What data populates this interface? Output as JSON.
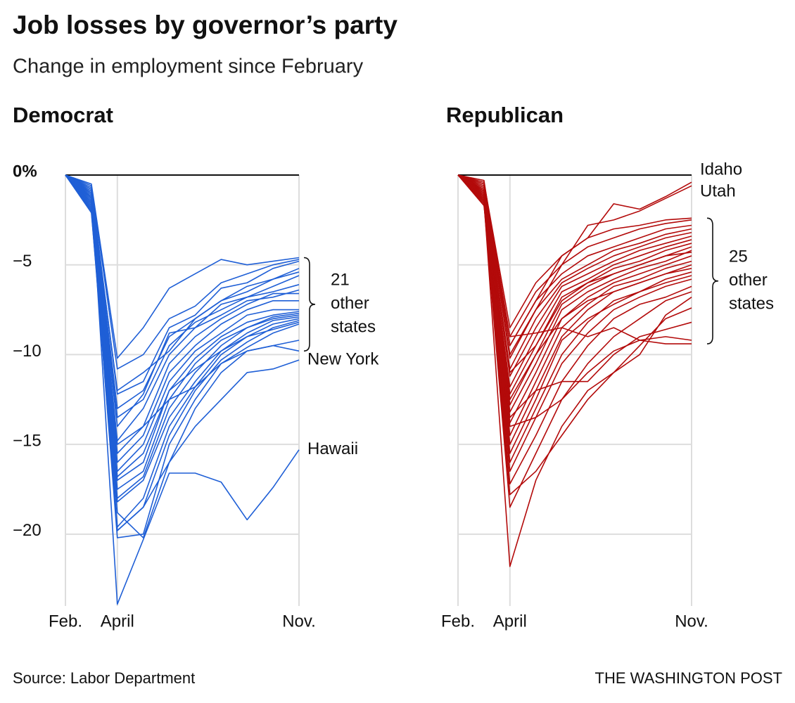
{
  "header": {
    "title": "Job losses by governor’s party",
    "subtitle": "Change in employment since February"
  },
  "footer": {
    "source": "Source: Labor Department",
    "credit": "THE WASHINGTON POST"
  },
  "chart_data": [
    {
      "type": "line",
      "title": "Democrat",
      "color": "#1f5fd6",
      "categories": [
        "Feb.",
        null,
        "April",
        null,
        null,
        null,
        null,
        null,
        null,
        "Nov."
      ],
      "ylim": [
        -24,
        0
      ],
      "yticks": [
        {
          "value": 0,
          "label": "0%"
        },
        {
          "value": -5,
          "label": "−5"
        },
        {
          "value": -10,
          "label": "−10"
        },
        {
          "value": -15,
          "label": "−15"
        },
        {
          "value": -20,
          "label": "−20"
        }
      ],
      "annotation": [
        "21",
        "other",
        "states"
      ],
      "series": [
        {
          "name": "New York",
          "values": [
            0,
            -1,
            -19.8,
            -18.5,
            -16,
            -14,
            -12.5,
            -11,
            -10.8,
            -10.3
          ]
        },
        {
          "name": "Hawaii",
          "values": [
            0,
            -0.8,
            -23.9,
            -20.3,
            -16.6,
            -16.6,
            -17.1,
            -19.2,
            -17.4,
            -15.3
          ]
        },
        {
          "values": [
            0,
            -0.5,
            -10.2,
            -8.5,
            -6.3,
            -5.5,
            -4.7,
            -5.0,
            -4.8,
            -4.6
          ]
        },
        {
          "values": [
            0,
            -0.6,
            -10.8,
            -10.0,
            -8.0,
            -7.3,
            -6.0,
            -5.5,
            -5.0,
            -4.7
          ]
        },
        {
          "values": [
            0,
            -0.7,
            -12.2,
            -11.5,
            -8.5,
            -7.8,
            -6.3,
            -6.0,
            -5.2,
            -4.8
          ]
        },
        {
          "values": [
            0,
            -0.8,
            -13.0,
            -12.0,
            -9.0,
            -8.0,
            -7.0,
            -6.5,
            -5.8,
            -5.2
          ]
        },
        {
          "values": [
            0,
            -1.0,
            -13.5,
            -12.5,
            -9.5,
            -8.2,
            -7.5,
            -6.8,
            -6.2,
            -5.6
          ]
        },
        {
          "values": [
            0,
            -1.2,
            -14.0,
            -12.2,
            -8.8,
            -8.5,
            -7.2,
            -6.8,
            -6.5,
            -6.1
          ]
        },
        {
          "values": [
            0,
            -0.9,
            -14.8,
            -13.0,
            -10.0,
            -8.5,
            -7.8,
            -7.0,
            -6.8,
            -6.4
          ]
        },
        {
          "values": [
            0,
            -1.1,
            -15.5,
            -14.0,
            -10.5,
            -9.0,
            -8.0,
            -7.2,
            -6.6,
            -6.6
          ]
        },
        {
          "values": [
            0,
            -1.3,
            -16.0,
            -14.5,
            -11.0,
            -9.5,
            -8.3,
            -7.5,
            -7.0,
            -7.0
          ]
        },
        {
          "values": [
            0,
            -1.5,
            -16.5,
            -15.0,
            -11.5,
            -9.8,
            -8.8,
            -7.8,
            -7.5,
            -7.5
          ]
        },
        {
          "values": [
            0,
            -1.2,
            -17.0,
            -16.0,
            -12.0,
            -10.2,
            -9.0,
            -8.2,
            -7.8,
            -7.6
          ]
        },
        {
          "values": [
            0,
            -1.4,
            -17.5,
            -16.5,
            -12.5,
            -10.5,
            -9.2,
            -8.5,
            -7.9,
            -7.7
          ]
        },
        {
          "values": [
            0,
            -1.6,
            -18.0,
            -16.8,
            -13.0,
            -11.0,
            -9.5,
            -8.5,
            -8.0,
            -7.8
          ]
        },
        {
          "values": [
            0,
            -1.8,
            -18.2,
            -17.0,
            -13.5,
            -11.5,
            -9.8,
            -8.8,
            -8.1,
            -7.9
          ]
        },
        {
          "values": [
            0,
            -1.5,
            -19.6,
            -18.0,
            -14.0,
            -11.8,
            -10.0,
            -9.0,
            -8.3,
            -8.0
          ]
        },
        {
          "values": [
            0,
            -2.0,
            -19.8,
            -18.5,
            -14.5,
            -12.0,
            -10.3,
            -9.3,
            -8.5,
            -8.1
          ]
        },
        {
          "values": [
            0,
            -1.7,
            -20.2,
            -20.0,
            -15.0,
            -12.5,
            -10.5,
            -9.6,
            -8.8,
            -8.3
          ]
        },
        {
          "values": [
            0,
            -1.9,
            -16.8,
            -15.5,
            -12.0,
            -10.8,
            -9.8,
            -9.0,
            -8.6,
            -8.2
          ]
        },
        {
          "values": [
            0,
            -2.1,
            -18.8,
            -20.2,
            -16.0,
            -13.0,
            -11.0,
            -9.8,
            -9.5,
            -9.2
          ]
        },
        {
          "values": [
            0,
            -1.3,
            -15.0,
            -14.0,
            -12.5,
            -11.8,
            -10.5,
            -9.8,
            -9.5,
            -9.8
          ]
        },
        {
          "values": [
            0,
            -1.0,
            -12.0,
            -11.0,
            -9.8,
            -8.0,
            -7.0,
            -6.2,
            -5.8,
            -5.4
          ]
        }
      ]
    },
    {
      "type": "line",
      "title": "Republican",
      "color": "#b30a0a",
      "categories": [
        "Feb.",
        null,
        "April",
        null,
        null,
        null,
        null,
        null,
        null,
        "Nov."
      ],
      "ylim": [
        -24,
        0
      ],
      "yticks": [
        0,
        -5,
        -10,
        -15,
        -20
      ],
      "annotation": [
        "25",
        "other",
        "states"
      ],
      "series": [
        {
          "name": "Idaho",
          "values": [
            0,
            -0.3,
            -9.5,
            -7.0,
            -4.5,
            -3.5,
            -1.6,
            -1.9,
            -1.2,
            -0.4
          ]
        },
        {
          "name": "Utah",
          "values": [
            0,
            -0.5,
            -10.0,
            -7.5,
            -5.0,
            -2.8,
            -2.5,
            -2.0,
            -1.3,
            -0.6
          ]
        },
        {
          "values": [
            0,
            -0.4,
            -8.5,
            -6.0,
            -4.5,
            -3.5,
            -3.0,
            -2.8,
            -2.5,
            -2.4
          ]
        },
        {
          "values": [
            0,
            -0.5,
            -9.0,
            -6.5,
            -5.0,
            -4.0,
            -3.5,
            -3.0,
            -2.7,
            -2.5
          ]
        },
        {
          "values": [
            0,
            -0.6,
            -9.5,
            -7.0,
            -5.5,
            -4.5,
            -4.0,
            -3.5,
            -3.0,
            -2.8
          ]
        },
        {
          "values": [
            0,
            -0.7,
            -10.2,
            -7.5,
            -5.8,
            -5.0,
            -4.2,
            -3.8,
            -3.3,
            -3.0
          ]
        },
        {
          "values": [
            0,
            -0.8,
            -10.8,
            -8.0,
            -6.0,
            -5.2,
            -4.5,
            -4.0,
            -3.5,
            -3.2
          ]
        },
        {
          "values": [
            0,
            -0.9,
            -11.2,
            -8.5,
            -6.2,
            -5.5,
            -4.8,
            -4.2,
            -3.8,
            -3.4
          ]
        },
        {
          "values": [
            0,
            -1.0,
            -11.8,
            -9.0,
            -6.5,
            -5.8,
            -5.0,
            -4.5,
            -4.0,
            -3.6
          ]
        },
        {
          "values": [
            0,
            -1.1,
            -12.2,
            -9.5,
            -6.8,
            -6.0,
            -5.2,
            -4.8,
            -4.2,
            -3.8
          ]
        },
        {
          "values": [
            0,
            -0.9,
            -12.8,
            -10.0,
            -7.2,
            -6.2,
            -5.5,
            -5.0,
            -4.5,
            -4.0
          ]
        },
        {
          "values": [
            0,
            -1.2,
            -13.2,
            -10.5,
            -7.5,
            -6.5,
            -5.8,
            -5.2,
            -4.8,
            -4.2
          ]
        },
        {
          "values": [
            0,
            -1.0,
            -13.8,
            -11.0,
            -8.0,
            -6.8,
            -6.0,
            -5.5,
            -5.0,
            -4.5
          ]
        },
        {
          "values": [
            0,
            -1.3,
            -14.5,
            -11.5,
            -8.5,
            -7.2,
            -6.2,
            -5.8,
            -5.2,
            -4.8
          ]
        },
        {
          "values": [
            0,
            -1.2,
            -15.0,
            -12.0,
            -9.0,
            -7.5,
            -6.5,
            -6.0,
            -5.5,
            -5.0
          ]
        },
        {
          "values": [
            0,
            -1.4,
            -16.0,
            -13.0,
            -10.0,
            -8.2,
            -7.0,
            -6.5,
            -5.8,
            -5.4
          ]
        },
        {
          "values": [
            0,
            -1.5,
            -16.5,
            -13.5,
            -10.5,
            -8.8,
            -7.5,
            -6.8,
            -6.2,
            -5.8
          ]
        },
        {
          "values": [
            0,
            -1.3,
            -17.2,
            -14.5,
            -11.5,
            -9.5,
            -8.0,
            -7.2,
            -6.8,
            -6.2
          ]
        },
        {
          "values": [
            0,
            -1.6,
            -18.5,
            -15.5,
            -12.5,
            -10.5,
            -9.0,
            -8.0,
            -7.0,
            -6.5
          ]
        },
        {
          "values": [
            0,
            -1.4,
            -21.8,
            -17.0,
            -14.0,
            -12.0,
            -11.0,
            -10.0,
            -7.8,
            -6.8
          ]
        },
        {
          "values": [
            0,
            -1.5,
            -17.8,
            -16.5,
            -14.5,
            -12.5,
            -11.0,
            -9.5,
            -8.0,
            -7.4
          ]
        },
        {
          "values": [
            0,
            -1.2,
            -13.5,
            -12.0,
            -11.5,
            -11.5,
            -10.0,
            -9.0,
            -8.6,
            -8.2
          ]
        },
        {
          "values": [
            0,
            -1.7,
            -14.0,
            -13.5,
            -12.5,
            -11.0,
            -9.8,
            -9.2,
            -9.0,
            -9.2
          ]
        },
        {
          "values": [
            0,
            -1.0,
            -9.0,
            -8.8,
            -8.5,
            -9.0,
            -8.5,
            -9.2,
            -9.4,
            -9.4
          ]
        },
        {
          "values": [
            0,
            -0.8,
            -11.0,
            -9.5,
            -7.0,
            -6.0,
            -5.5,
            -5.0,
            -4.5,
            -4.3
          ]
        },
        {
          "values": [
            0,
            -0.9,
            -12.5,
            -10.0,
            -8.0,
            -7.0,
            -6.5,
            -6.0,
            -5.5,
            -5.2
          ]
        },
        {
          "values": [
            0,
            -1.1,
            -15.5,
            -12.5,
            -9.2,
            -8.0,
            -7.2,
            -6.5,
            -6.0,
            -5.6
          ]
        }
      ]
    }
  ]
}
